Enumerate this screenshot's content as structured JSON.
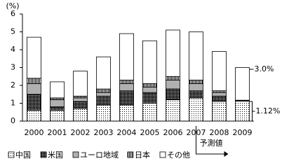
{
  "chart_data": {
    "type": "stacked_bar",
    "y_unit": "(%)",
    "categories": [
      "2000",
      "2001",
      "2002",
      "2003",
      "2004",
      "2005",
      "2006",
      "2007",
      "2008",
      "2009"
    ],
    "series": [
      {
        "name": "中国",
        "pattern": "dots",
        "color": "#000000",
        "values": [
          0.6,
          0.6,
          0.7,
          0.9,
          0.9,
          1.0,
          1.2,
          1.3,
          1.1,
          1.12
        ]
      },
      {
        "name": "米国",
        "pattern": "checker",
        "color": "#000000",
        "values": [
          0.9,
          0.2,
          0.4,
          0.5,
          0.8,
          0.6,
          0.6,
          0.4,
          0.3,
          0.05
        ]
      },
      {
        "name": "ユーロ地域",
        "pattern": "gray",
        "color": "#b0b0b0",
        "values": [
          0.6,
          0.4,
          0.2,
          0.2,
          0.4,
          0.3,
          0.5,
          0.4,
          0.2,
          0
        ]
      },
      {
        "name": "日本",
        "pattern": "stripes",
        "color": "#000000",
        "values": [
          0.3,
          0.1,
          0.1,
          0.2,
          0.2,
          0.2,
          0.2,
          0.2,
          0.1,
          0
        ]
      },
      {
        "name": "その他",
        "pattern": "none",
        "color": "#ffffff",
        "values": [
          2.3,
          0.9,
          1.4,
          1.8,
          2.6,
          2.4,
          2.6,
          2.7,
          2.2,
          1.83
        ]
      }
    ],
    "ylim": [
      0,
      6
    ],
    "yticks": [
      0,
      1,
      2,
      3,
      4,
      5,
      6
    ],
    "annotations": [
      "3.0%",
      "1.12%",
      "予測値"
    ]
  }
}
